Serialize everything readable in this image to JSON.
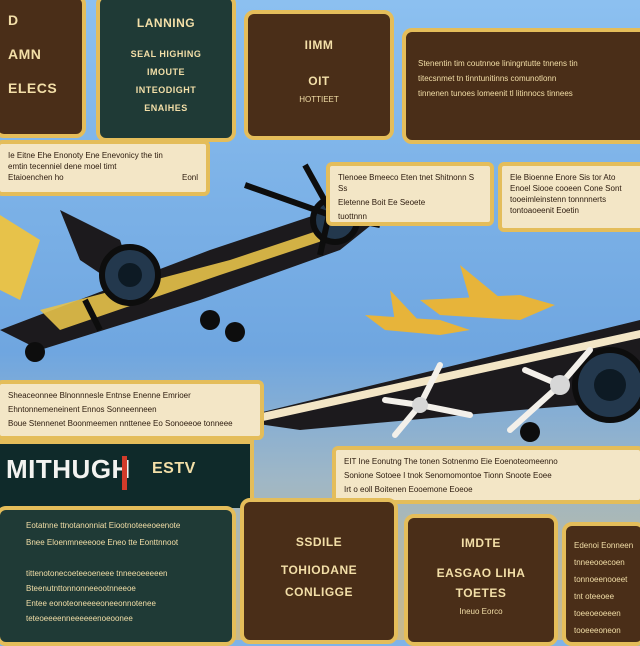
{
  "top": {
    "p1": {
      "title_lines": [
        "D",
        "AMN",
        "ELECS"
      ]
    },
    "p2": {
      "title": "LANNING",
      "body_lines": [
        "SEAL HIGHING",
        "IMOUTE",
        "INTEODIGHT",
        "ENAIHES"
      ]
    },
    "p3": {
      "title": "IIMM",
      "subtitle": "OIT",
      "note": "HOTTIEET"
    },
    "p4": {
      "lines": [
        "Stenentin tim coutnnoe liningntutte tnnens tin",
        "titecsnmet tn tinntunitinns comunotlonn",
        "tinnenen tunoes lomeenit tl litinnocs tinnees"
      ]
    }
  },
  "mid": {
    "left_card": {
      "lines": [
        "Ie Eitne Ehe Enonoty Ene Enevonicy the tin",
        "emtin tecenniel dene moel timt",
        "Etaioenchen ho"
      ],
      "footer": "Eonl"
    },
    "center_card": {
      "lines": [
        "Tlenoee Bmeeco Eten tnet Shitnonn S Ss",
        "Eletenne Boit Ee Seoete",
        "tuottnnn"
      ]
    },
    "right_card": {
      "lines": [
        "Ele Bioenne Enore Sis tor Ato",
        "Enoel Siooe cooeen Cone Sont",
        "tooeimleinstenn tonnnnerts",
        "tontoaoeenit Eoetin"
      ]
    }
  },
  "lower": {
    "left_card": {
      "lines": [
        "Sheaceonnee Blnonnnesle Entnse Enenne Emrioer",
        "Ehntonnemeneinent Ennos Sonneenneen",
        "Boue Stennenet Boonmeemen nnttenee Eo Sonoeeoe tonneee"
      ]
    },
    "right_card": {
      "lines": [
        "EIT Ine Eonutng The tonen Sotnenmo Eie Eoenoteomeenno",
        "Sonione Sotoee I tnok Senomomontoe Tionn Snoote Eoee",
        "Irt o eoll Boitenen Eooemone Eoeoe"
      ]
    }
  },
  "banner": {
    "text": "MITHUGH",
    "side": "ESTV"
  },
  "bottom": {
    "g1": {
      "lines": [
        "Eotatnne ttnotanonniat Eiootnoteeeoeenote",
        "Bnee Eloenmneeeooe Eneo tte Eonttnnoot"
      ],
      "extra": [
        "tittenotonecoeteeoeneee tnneeoeeeeen",
        "Bteenutnttonnonneeootnneeoe",
        "Entee eonoteoneeeeoneeonnotenee",
        "teteoeeeenneeeeeenoeoonee"
      ]
    },
    "b2": {
      "lines": [
        "SSDILE",
        "TOHIODANE",
        "CONLIGGE"
      ]
    },
    "b3": {
      "lines": [
        "IMDTE",
        "EASGAO LIHA",
        "TOETES"
      ],
      "note": "Ineuo Eorco"
    },
    "b4": {
      "lines": [
        "Edenoi Eonneen",
        "tnneeooecoen",
        "tonnoeenooeet",
        "tnt oteeoee",
        "toeeoeoeeen",
        "tooeeeoneon"
      ]
    }
  },
  "colors": {
    "frame": "#e4bd5a",
    "dark_panel": "#4a2e18",
    "green_panel": "#1f3a36",
    "card": "#f3e6c6",
    "banner_accent": "#d23b2a"
  }
}
